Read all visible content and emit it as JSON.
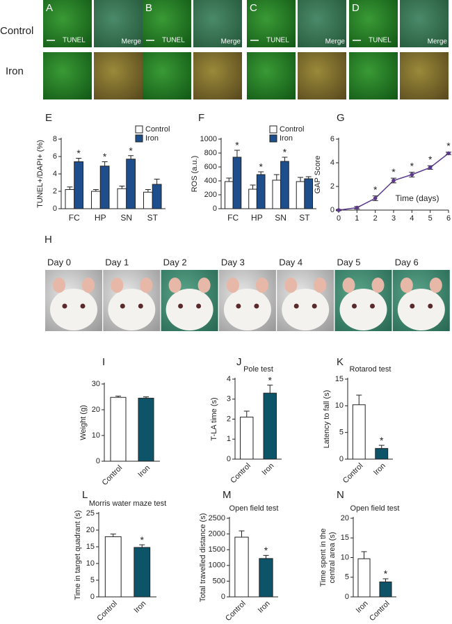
{
  "micrographs": {
    "row_labels": [
      "Control",
      "Iron"
    ],
    "panels": [
      {
        "letter": "A",
        "labels": [
          "TUNEL",
          "Merge"
        ]
      },
      {
        "letter": "B",
        "labels": [
          "TUNEL",
          "Merge"
        ]
      },
      {
        "letter": "C",
        "labels": [
          "TUNEL",
          "Merge"
        ]
      },
      {
        "letter": "D",
        "labels": [
          "TUNEL",
          "Merge"
        ]
      }
    ]
  },
  "photos": {
    "letter": "H",
    "labels": [
      "Day 0",
      "Day 1",
      "Day 2",
      "Day 3",
      "Day 4",
      "Day 5",
      "Day 6"
    ]
  },
  "chart_data": [
    {
      "type": "bar",
      "panel": "E",
      "ylabel": "TUNEL+/DAPI+ (%)",
      "categories": [
        "FC",
        "HP",
        "SN",
        "ST"
      ],
      "series": [
        {
          "name": "Control",
          "color": "#ffffff",
          "values": [
            2.2,
            2.0,
            2.3,
            1.9
          ],
          "errors": [
            0.3,
            0.2,
            0.3,
            0.3
          ],
          "significance": [
            null,
            null,
            null,
            null
          ]
        },
        {
          "name": "Iron",
          "color": "#1f4e8c",
          "values": [
            5.4,
            4.9,
            5.7,
            2.8
          ],
          "errors": [
            0.4,
            0.5,
            0.4,
            0.6
          ],
          "significance": [
            "*",
            "*",
            "*",
            null
          ]
        }
      ],
      "ylim": [
        0,
        8
      ],
      "yticks": [
        0,
        2,
        4,
        6,
        8
      ]
    },
    {
      "type": "bar",
      "panel": "F",
      "ylabel": "ROS (a.u.)",
      "categories": [
        "FC",
        "HP",
        "SN",
        "ST"
      ],
      "series": [
        {
          "name": "Control",
          "color": "#ffffff",
          "values": [
            390,
            280,
            410,
            390
          ],
          "errors": [
            50,
            60,
            80,
            60
          ],
          "significance": [
            null,
            null,
            null,
            null
          ]
        },
        {
          "name": "Iron",
          "color": "#1f4e8c",
          "values": [
            740,
            490,
            680,
            430
          ],
          "errors": [
            100,
            40,
            60,
            30
          ],
          "significance": [
            "*",
            "*",
            "*",
            null
          ]
        }
      ],
      "ylim": [
        0,
        1000
      ],
      "yticks": [
        0,
        200,
        400,
        600,
        800,
        1000
      ]
    },
    {
      "type": "line",
      "panel": "G",
      "ylabel": "GAP Score",
      "xlabel": "Time (days)",
      "color": "#5b3a8c",
      "x": [
        0,
        1,
        2,
        3,
        4,
        5,
        6
      ],
      "values": [
        0,
        0.2,
        1.0,
        2.5,
        3.0,
        3.6,
        4.8
      ],
      "errors": [
        0.05,
        0.1,
        0.2,
        0.2,
        0.2,
        0.15,
        0.1
      ],
      "significance": [
        null,
        null,
        "*",
        "*",
        "*",
        "*",
        "*"
      ],
      "xlim": [
        0,
        6
      ],
      "xticks": [
        0,
        1,
        2,
        3,
        4,
        5,
        6
      ],
      "ylim": [
        0,
        6
      ],
      "yticks": [
        0,
        2,
        4,
        6
      ]
    },
    {
      "type": "bar",
      "panel": "I",
      "ylabel": "Weight (g)",
      "categories": [
        "Control",
        "Iron"
      ],
      "colors": [
        "#ffffff",
        "#0e5468"
      ],
      "values": [
        24.8,
        24.5
      ],
      "errors": [
        0.5,
        0.5
      ],
      "significance": [
        null,
        null
      ],
      "ylim": [
        0,
        30
      ],
      "yticks": [
        0,
        10,
        20,
        30
      ]
    },
    {
      "type": "bar",
      "panel": "J",
      "title": "Pole test",
      "ylabel": "T-LA time (s)",
      "categories": [
        "Control",
        "Iron"
      ],
      "colors": [
        "#ffffff",
        "#0e5468"
      ],
      "values": [
        2.1,
        3.3
      ],
      "errors": [
        0.3,
        0.4
      ],
      "significance": [
        null,
        "*"
      ],
      "ylim": [
        0,
        4
      ],
      "yticks": [
        0,
        1,
        2,
        3,
        4
      ]
    },
    {
      "type": "bar",
      "panel": "K",
      "title": "Rotarod test",
      "ylabel": "Latency to fall (s)",
      "categories": [
        "Control",
        "Iron"
      ],
      "colors": [
        "#ffffff",
        "#0e5468"
      ],
      "values": [
        10.2,
        2.0
      ],
      "errors": [
        1.8,
        0.6
      ],
      "significance": [
        null,
        "*"
      ],
      "ylim": [
        0,
        15
      ],
      "yticks": [
        0,
        5,
        10,
        15
      ]
    },
    {
      "type": "bar",
      "panel": "L",
      "title": "Morris water maze test",
      "ylabel": "Time in target quadrant (s)",
      "categories": [
        "Control",
        "Iron"
      ],
      "colors": [
        "#ffffff",
        "#0e5468"
      ],
      "values": [
        18,
        14.8
      ],
      "errors": [
        0.8,
        0.8
      ],
      "significance": [
        null,
        "*"
      ],
      "ylim": [
        0,
        25
      ],
      "yticks": [
        0,
        5,
        10,
        15,
        20,
        25
      ]
    },
    {
      "type": "bar",
      "panel": "M",
      "title": "Open field test",
      "ylabel": "Total travelled distance (s)",
      "categories": [
        "Control",
        "Iron"
      ],
      "colors": [
        "#ffffff",
        "#0e5468"
      ],
      "values": [
        1900,
        1220
      ],
      "errors": [
        200,
        100
      ],
      "significance": [
        null,
        "*"
      ],
      "ylim": [
        0,
        2500
      ],
      "yticks": [
        0,
        500,
        1000,
        1500,
        2000,
        2500
      ]
    },
    {
      "type": "bar",
      "panel": "N",
      "title": "Open field test",
      "ylabel": [
        "Time spent in the",
        "central area (s)"
      ],
      "categories": [
        "Iron",
        "Control"
      ],
      "colors": [
        "#ffffff",
        "#0e5468"
      ],
      "values": [
        9.7,
        3.8
      ],
      "errors": [
        1.8,
        0.8
      ],
      "significance": [
        null,
        "*"
      ],
      "ylim": [
        0,
        20
      ],
      "yticks": [
        0,
        5,
        10,
        15,
        20
      ]
    }
  ]
}
